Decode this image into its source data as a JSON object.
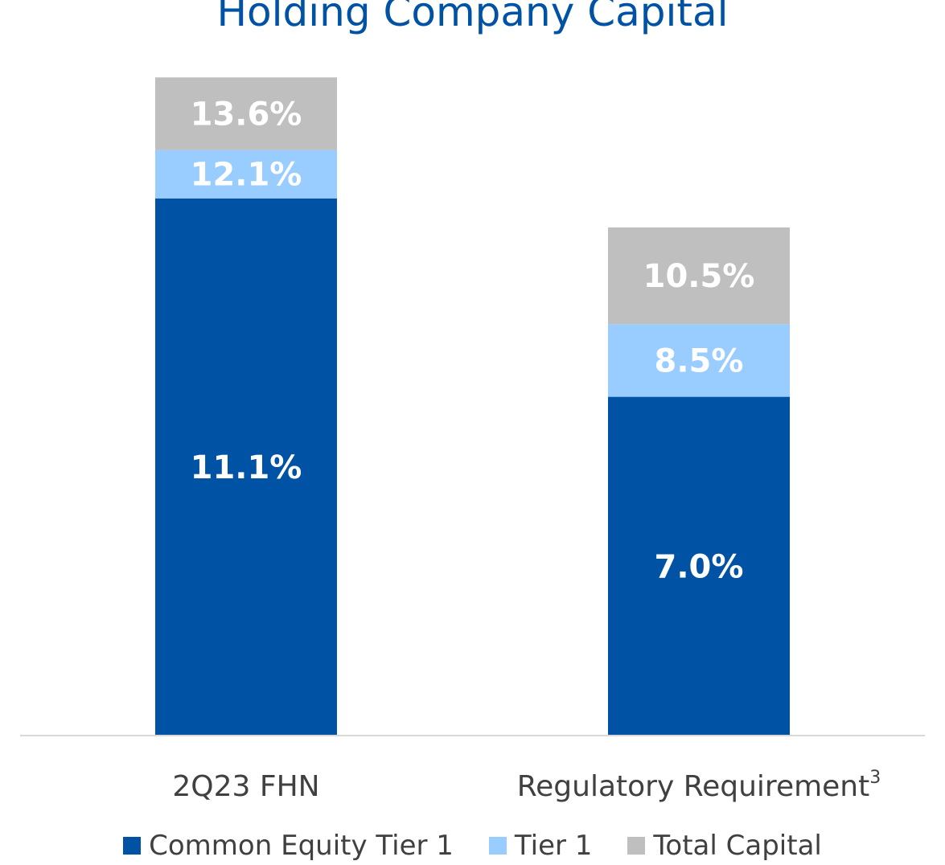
{
  "chart_data": {
    "type": "bar",
    "stacked_overlay": true,
    "title": "Holding Company Capital",
    "categories": [
      "2Q23 FHN",
      "Regulatory Requirement"
    ],
    "category_superscripts": [
      "",
      "3"
    ],
    "series": [
      {
        "name": "Common Equity Tier 1",
        "color": "#0052A5",
        "values": [
          11.1,
          7.0
        ],
        "labels": [
          "11.1%",
          "7.0%"
        ]
      },
      {
        "name": "Tier 1",
        "color": "#99CCFF",
        "values": [
          12.1,
          8.5
        ],
        "labels": [
          "12.1%",
          "8.5%"
        ]
      },
      {
        "name": "Total Capital",
        "color": "#BFBFBF",
        "values": [
          13.6,
          10.5
        ],
        "labels": [
          "13.6%",
          "10.5%"
        ]
      }
    ],
    "legend_position": "bottom",
    "grid": false
  }
}
